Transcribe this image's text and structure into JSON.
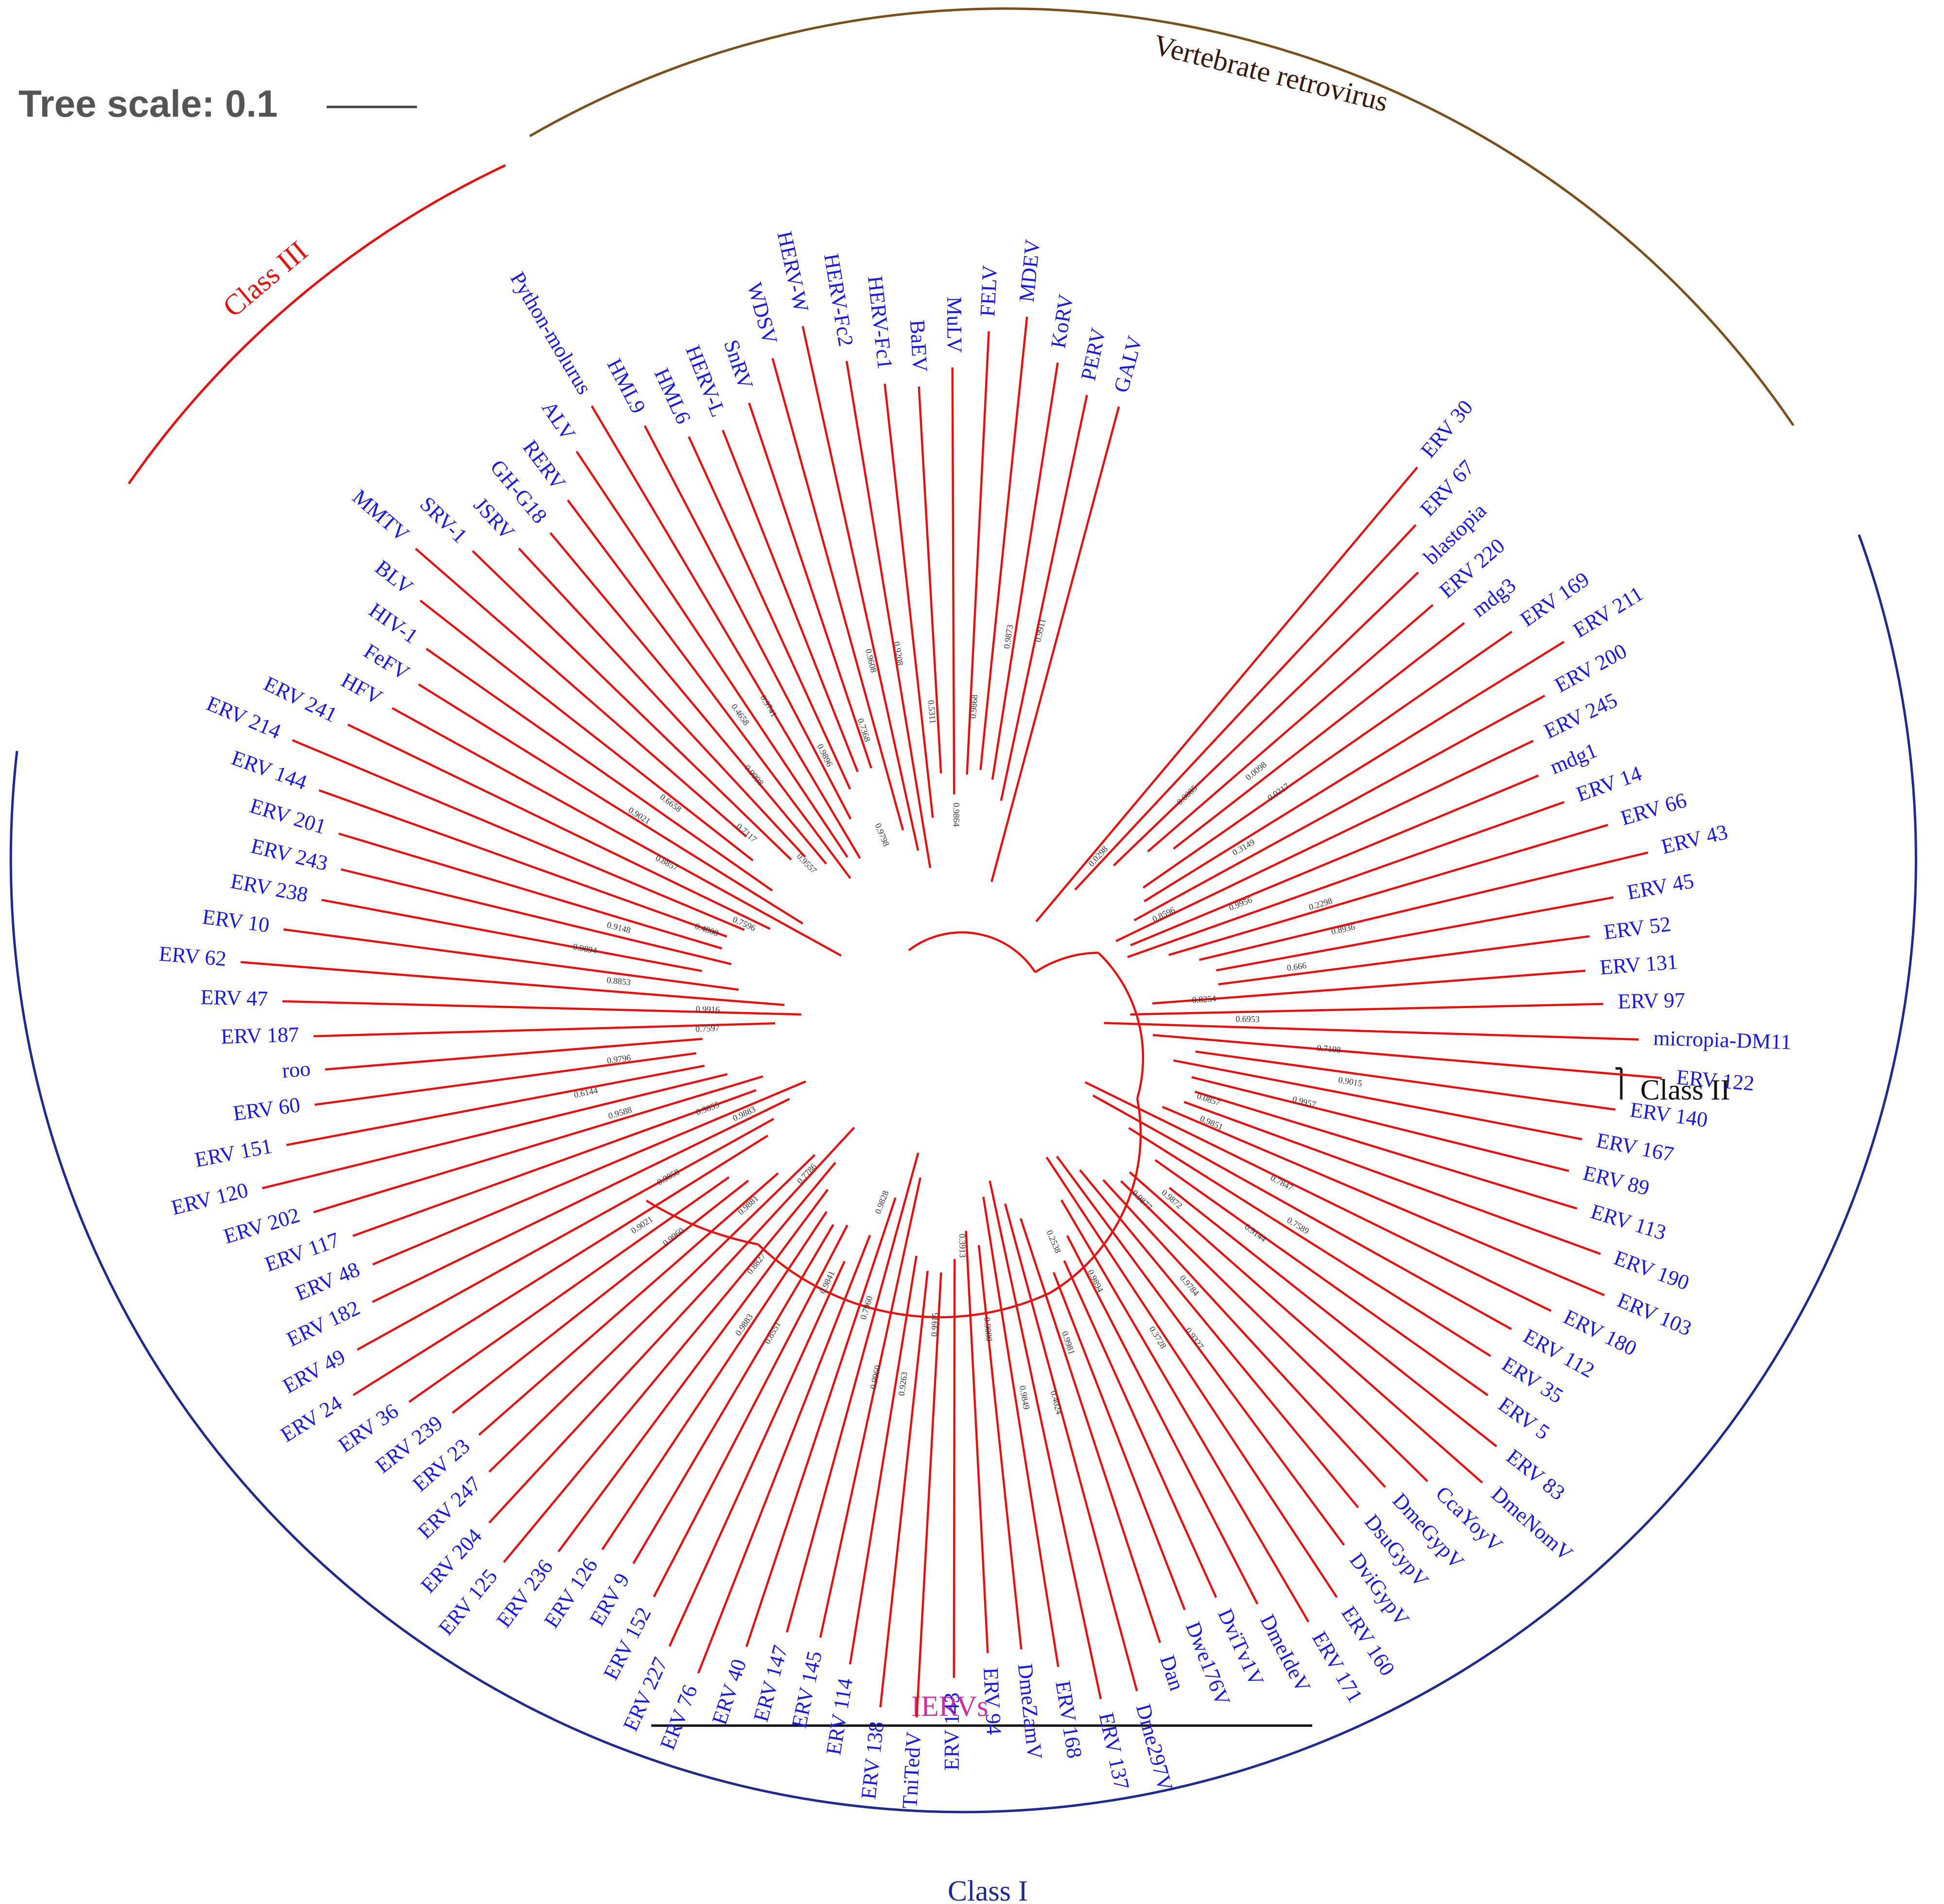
{
  "tree_scale": {
    "label": "Tree scale: 0.1"
  },
  "groups": {
    "vertebrate": {
      "label": "Vertebrate retrovirus",
      "color": "#7a4f1c"
    },
    "class_iii": {
      "label": "Class III",
      "color": "#e01212"
    },
    "class_i": {
      "label": "Class I",
      "color": "#1f2a8c"
    },
    "class_ii": {
      "label": "Class II",
      "color": "#111111"
    },
    "iervs": {
      "label": "IERVs",
      "color": "#cc2f9e"
    }
  },
  "colors": {
    "branch": "#e01212",
    "leaf_text": "#1a1ad6"
  },
  "leaves": [
    "ERV 30",
    "ERV 67",
    "blastopia",
    "ERV 220",
    "mdg3",
    "ERV 169",
    "ERV 211",
    "ERV 200",
    "ERV 245",
    "mdg1",
    "ERV 14",
    "ERV 66",
    "ERV 43",
    "ERV 45",
    "ERV 52",
    "ERV 131",
    "ERV 97",
    "micropia-DM11",
    "ERV 122",
    "ERV 140",
    "ERV 167",
    "ERV 89",
    "ERV 113",
    "ERV 190",
    "ERV 103",
    "ERV 180",
    "ERV 112",
    "ERV 35",
    "ERV 5",
    "ERV 83",
    "DmeNomV",
    "CcaYoyV",
    "DmeGypV",
    "DsuGypV",
    "DviGypV",
    "ERV 160",
    "ERV 171",
    "DmeIdeV",
    "DviTv1V",
    "Dwe176V",
    "Dan",
    "Dme297V",
    "ERV 137",
    "ERV 168",
    "DmeZamV",
    "ERV 94",
    "ERV 143",
    "TniTedV",
    "ERV 138",
    "ERV 114",
    "ERV 145",
    "ERV 147",
    "ERV 40",
    "ERV 76",
    "ERV 227",
    "ERV 152",
    "ERV 9",
    "ERV 126",
    "ERV 236",
    "ERV 125",
    "ERV 204",
    "ERV 247",
    "ERV 23",
    "ERV 239",
    "ERV 36",
    "ERV 24",
    "ERV 49",
    "ERV 182",
    "ERV 48",
    "ERV 117",
    "ERV 202",
    "ERV 120",
    "ERV 151",
    "ERV 60",
    "roo",
    "ERV 187",
    "ERV 47",
    "ERV 62",
    "ERV 10",
    "ERV 238",
    "ERV 243",
    "ERV 201",
    "ERV 144",
    "ERV 214",
    "ERV 241",
    "HFV",
    "FeFV",
    "HIV-1",
    "BLV",
    "MMTV",
    "SRV-1",
    "JSRV",
    "GH-G18",
    "RERV",
    "ALV",
    "Python-molurus",
    "HML9",
    "HML6",
    "HERV-L",
    "SnRV",
    "WDSV",
    "HERV-W",
    "HERV-Fc2",
    "HERV-Fc1",
    "BaEV",
    "MuLV",
    "FELV",
    "MDEV",
    "KoRV",
    "PERV",
    "GALV"
  ],
  "support_values": [
    "0.0298",
    "0.0085",
    "0.0098",
    "0.0217",
    "0.3149",
    "0.8596",
    "0.9956",
    "0.2298",
    "0.8936",
    "0.666",
    "0.8254",
    "0.6953",
    "0.7108",
    "0.9015",
    "0.9957",
    "0.0857",
    "0.9851",
    "0.7847",
    "0.7589",
    "0.9144",
    "0.9872",
    "0.9877",
    "0.9784",
    "0.9327",
    "0.3728",
    "0.9894",
    "0.2538",
    "0.9981",
    "0.4024",
    "0.9849",
    "0.9080",
    "0.3913",
    "0.9915",
    "0.9263",
    "0.9960",
    "0.7960",
    "0.9828",
    "0.9841",
    "0.8551",
    "0.9883",
    "0.8827",
    "0.7786",
    "0.9881",
    "0.9960",
    "0.9021",
    "0.9858",
    "0.9883",
    "0.9855",
    "0.9588",
    "0.6144",
    "0.9796",
    "0.7597",
    "0.9916",
    "0.8853",
    "0.9894",
    "0.9148",
    "0.4808",
    "0.7596",
    "0.8857",
    "0.9021",
    "0.6658",
    "0.7117",
    "0.9557",
    "0.9998",
    "0.4658",
    "0.9741",
    "0.9896",
    "0.9798",
    "0.7368",
    "0.9608",
    "0.9208",
    "0.5311",
    "0.9864",
    "0.9868",
    "0.9873",
    "0.9911"
  ]
}
